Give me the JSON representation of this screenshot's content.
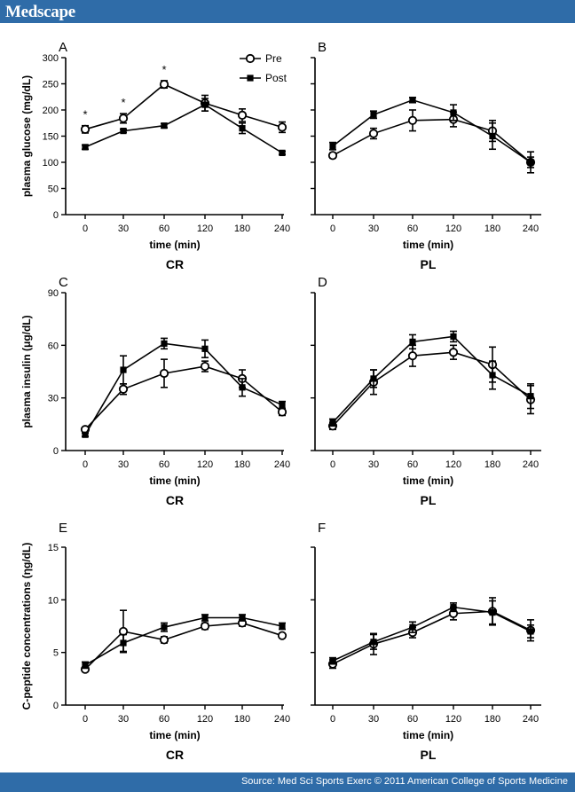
{
  "header": {
    "logo": "Medscape"
  },
  "footer": {
    "source": "Source: Med Sci Sports Exerc © 2011 American College of Sports Medicine"
  },
  "legend": {
    "pre": "Pre",
    "post": "Post"
  },
  "colors": {
    "brand": "#2f6ca8",
    "ink": "#000000"
  },
  "chart_data": [
    {
      "panel": "A",
      "type": "line",
      "title": "CR",
      "xlabel": "time (min)",
      "ylabel": "plasma glucose (mg/dL)",
      "categories": [
        "0",
        "30",
        "60",
        "120",
        "180",
        "240"
      ],
      "ylim": [
        0,
        300
      ],
      "yticks": [
        0,
        50,
        100,
        150,
        200,
        250,
        300
      ],
      "legend": "top-right",
      "series": [
        {
          "name": "Pre",
          "marker": "open-circle",
          "values": [
            163,
            184,
            249,
            213,
            190,
            167
          ],
          "errors": [
            7,
            9,
            7,
            15,
            12,
            10
          ]
        },
        {
          "name": "Post",
          "marker": "filled-square",
          "values": [
            129,
            160,
            170,
            210,
            165,
            118
          ],
          "errors": [
            4,
            3,
            4,
            12,
            10,
            3
          ]
        }
      ],
      "annotations": [
        {
          "x": "0",
          "label": "*"
        },
        {
          "x": "30",
          "label": "*"
        },
        {
          "x": "60",
          "label": "*"
        }
      ]
    },
    {
      "panel": "B",
      "type": "line",
      "title": "PL",
      "xlabel": "time (min)",
      "ylabel": "",
      "categories": [
        "0",
        "30",
        "60",
        "120",
        "180",
        "240"
      ],
      "ylim": [
        0,
        300
      ],
      "yticks": [],
      "series": [
        {
          "name": "Pre",
          "marker": "open-circle",
          "values": [
            113,
            155,
            180,
            182,
            160,
            100
          ],
          "errors": [
            5,
            10,
            20,
            14,
            20,
            20
          ]
        },
        {
          "name": "Post",
          "marker": "filled-square",
          "values": [
            131,
            191,
            219,
            195,
            150,
            100
          ],
          "errors": [
            7,
            7,
            5,
            15,
            25,
            10
          ]
        }
      ]
    },
    {
      "panel": "C",
      "type": "line",
      "title": "CR",
      "xlabel": "time (min)",
      "ylabel": "plasma insulin (μg/dL)",
      "categories": [
        "0",
        "30",
        "60",
        "120",
        "180",
        "240"
      ],
      "ylim": [
        0,
        90
      ],
      "yticks": [
        0,
        30,
        60,
        90
      ],
      "series": [
        {
          "name": "Pre",
          "marker": "open-circle",
          "values": [
            12,
            35,
            44,
            48,
            41,
            22
          ],
          "errors": [
            1,
            3,
            8,
            3,
            5,
            2
          ]
        },
        {
          "name": "Post",
          "marker": "filled-square",
          "values": [
            9,
            46,
            61,
            58,
            36,
            26
          ],
          "errors": [
            1,
            8,
            3,
            5,
            5,
            2
          ]
        }
      ]
    },
    {
      "panel": "D",
      "type": "line",
      "title": "PL",
      "xlabel": "time (min)",
      "ylabel": "",
      "categories": [
        "0",
        "30",
        "60",
        "120",
        "180",
        "240"
      ],
      "ylim": [
        0,
        90
      ],
      "yticks": [],
      "series": [
        {
          "name": "Pre",
          "marker": "open-circle",
          "values": [
            14,
            39,
            54,
            56,
            49,
            29
          ],
          "errors": [
            2,
            7,
            6,
            4,
            10,
            8
          ]
        },
        {
          "name": "Post",
          "marker": "filled-square",
          "values": [
            16,
            41,
            62,
            65,
            43,
            31
          ],
          "errors": [
            2,
            5,
            4,
            3,
            8,
            7
          ]
        }
      ]
    },
    {
      "panel": "E",
      "type": "line",
      "title": "CR",
      "xlabel": "time (min)",
      "ylabel": "C-peptide concentrations (ηg/dL)",
      "categories": [
        "0",
        "30",
        "60",
        "120",
        "180",
        "240"
      ],
      "ylim": [
        0,
        15
      ],
      "yticks": [
        0,
        5,
        10,
        15
      ],
      "series": [
        {
          "name": "Pre",
          "marker": "open-circle",
          "values": [
            3.4,
            7.0,
            6.2,
            7.5,
            7.8,
            6.6
          ],
          "errors": [
            0.2,
            2.0,
            0.3,
            0.3,
            0.3,
            0.2
          ]
        },
        {
          "name": "Post",
          "marker": "filled-square",
          "values": [
            3.8,
            5.9,
            7.4,
            8.3,
            8.3,
            7.5
          ],
          "errors": [
            0.3,
            0.8,
            0.4,
            0.3,
            0.3,
            0.3
          ]
        }
      ]
    },
    {
      "panel": "F",
      "type": "line",
      "title": "PL",
      "xlabel": "time (min)",
      "ylabel": "",
      "categories": [
        "0",
        "30",
        "60",
        "120",
        "180",
        "240"
      ],
      "ylim": [
        0,
        15
      ],
      "yticks": [],
      "series": [
        {
          "name": "Pre",
          "marker": "open-circle",
          "values": [
            3.9,
            5.8,
            6.9,
            8.7,
            8.9,
            7.1
          ],
          "errors": [
            0.4,
            1.0,
            0.5,
            0.6,
            1.3,
            1.0
          ]
        },
        {
          "name": "Post",
          "marker": "filled-square",
          "values": [
            4.2,
            6.0,
            7.4,
            9.3,
            8.8,
            7.0
          ],
          "errors": [
            0.3,
            0.7,
            0.5,
            0.4,
            1.1,
            0.6
          ]
        }
      ]
    }
  ]
}
